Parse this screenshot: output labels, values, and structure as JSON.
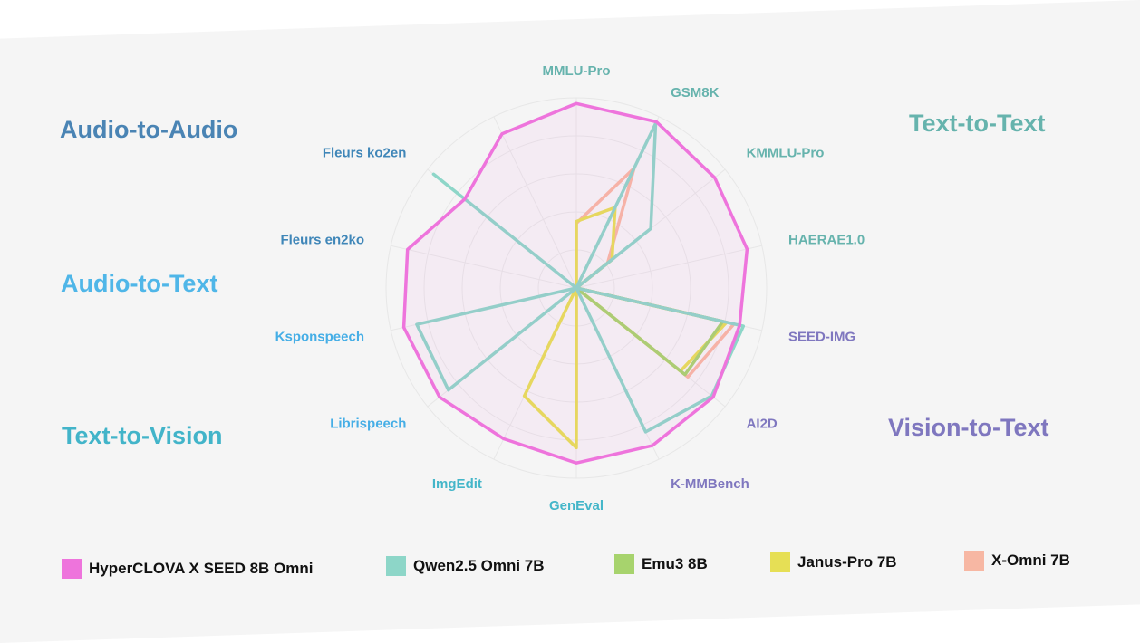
{
  "chart_data": {
    "type": "radar",
    "axes": [
      {
        "label": "MMLU-Pro",
        "color": "#66b3ad"
      },
      {
        "label": "GSM8K",
        "color": "#66b3ad"
      },
      {
        "label": "KMMLU-Pro",
        "color": "#66b3ad"
      },
      {
        "label": "HAERAE1.0",
        "color": "#66b3ad"
      },
      {
        "label": "SEED-IMG",
        "color": "#7f77bf"
      },
      {
        "label": "AI2D",
        "color": "#7f77bf"
      },
      {
        "label": "K-MMBench",
        "color": "#7f77bf"
      },
      {
        "label": "GenEval",
        "color": "#44b6c9"
      },
      {
        "label": "ImgEdit",
        "color": "#44b6c9"
      },
      {
        "label": "Librispeech",
        "color": "#45aee6"
      },
      {
        "label": "Ksponspeech",
        "color": "#45aee6"
      },
      {
        "label": "Fleurs en2ko",
        "color": "#3f86b8"
      },
      {
        "label": "Fleurs ko2en",
        "color": "#3f86b8"
      },
      {
        "label": "",
        "color": "#3f86b8"
      }
    ],
    "range": [
      0,
      1
    ],
    "series": [
      {
        "name": "HyperCLOVA X SEED 8B Omni",
        "color": "#ee74dc",
        "fill": true,
        "values": [
          0.97,
          0.97,
          0.93,
          0.92,
          0.88,
          0.92,
          0.92,
          0.92,
          0.88,
          0.92,
          0.93,
          0.91,
          0.75,
          0.9
        ]
      },
      {
        "name": "Qwen2.5 Omni 7B",
        "color": "#8dd6c8",
        "fill": false,
        "values": [
          0.0,
          0.96,
          0.5,
          0.0,
          0.9,
          0.91,
          0.84,
          0.0,
          0.0,
          0.86,
          0.86,
          0.0,
          0.96,
          0.0
        ]
      },
      {
        "name": "Emu3 8B",
        "color": "#a7d36d",
        "fill": false,
        "values": [
          0.0,
          0.0,
          0.25,
          0.0,
          0.79,
          0.73,
          0.0,
          0.0,
          0.0,
          0.0,
          0.0,
          0.0,
          0.0,
          0.0
        ]
      },
      {
        "name": "Janus-Pro 7B",
        "color": "#e6df55",
        "fill": false,
        "values": [
          0.35,
          0.47,
          0.24,
          0.0,
          0.81,
          0.7,
          0.0,
          0.84,
          0.63,
          0.0,
          0.0,
          0.0,
          0.0,
          0.0
        ]
      },
      {
        "name": "X-Omni 7B",
        "color": "#f7b7a3",
        "fill": false,
        "values": [
          0.34,
          0.7,
          0.21,
          0.0,
          0.85,
          0.75,
          0.0,
          0.69,
          0.0,
          0.0,
          0.0,
          0.0,
          0.0,
          0.0
        ]
      }
    ]
  },
  "categories": {
    "audio_to_audio": {
      "label": "Audio-to-Audio",
      "color": "#4a84b4"
    },
    "audio_to_text": {
      "label": "Audio-to-Text",
      "color": "#4fb6e8"
    },
    "text_to_vision": {
      "label": "Text-to-Vision",
      "color": "#42b4c9"
    },
    "text_to_text": {
      "label": "Text-to-Text",
      "color": "#66b3ad"
    },
    "vision_to_text": {
      "label": "Vision-to-Text",
      "color": "#7f77bf"
    }
  },
  "legend": [
    {
      "label": "HyperCLOVA X SEED 8B Omni",
      "color": "#ee74dc"
    },
    {
      "label": "Qwen2.5 Omni 7B",
      "color": "#8dd6c8"
    },
    {
      "label": "Emu3 8B",
      "color": "#a7d36d"
    },
    {
      "label": "Janus-Pro 7B",
      "color": "#e6df55"
    },
    {
      "label": "X-Omni 7B",
      "color": "#f7b7a3"
    }
  ]
}
